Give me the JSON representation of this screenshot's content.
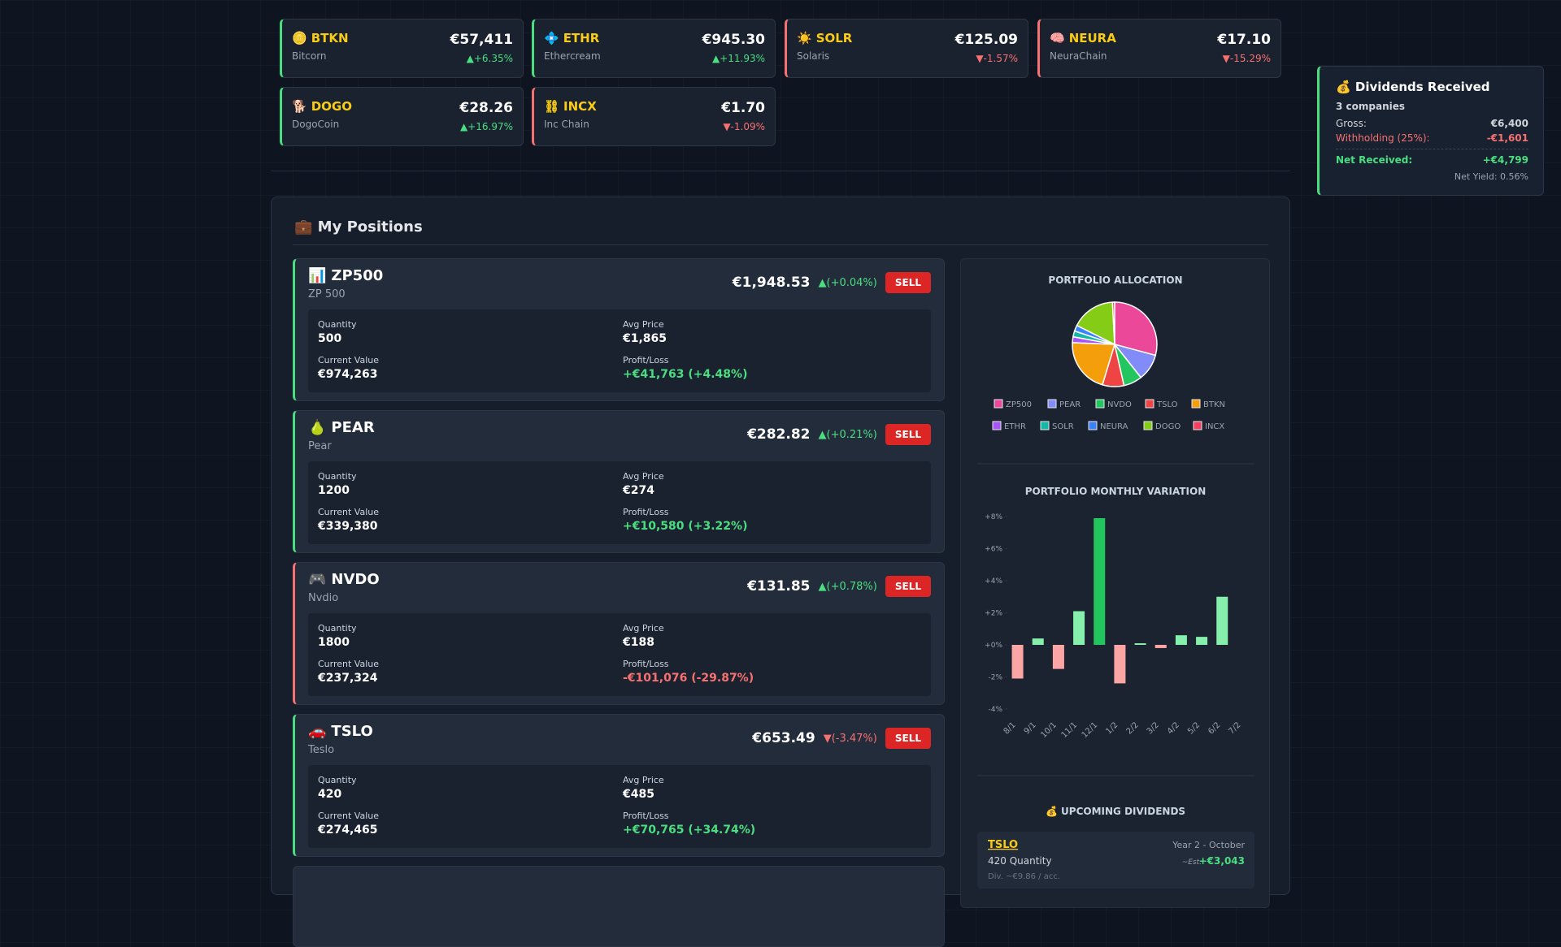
{
  "tickers": [
    {
      "icon": "🪙",
      "symbol": "BTKN",
      "name": "Bitcorn",
      "price": "€57,411",
      "change": "▲+6.35%",
      "direction": "up"
    },
    {
      "icon": "💠",
      "symbol": "ETHR",
      "name": "Ethercream",
      "price": "€945.30",
      "change": "▲+11.93%",
      "direction": "up"
    },
    {
      "icon": "☀️",
      "symbol": "SOLR",
      "name": "Solaris",
      "price": "€125.09",
      "change": "▼-1.57%",
      "direction": "down"
    },
    {
      "icon": "🧠",
      "symbol": "NEURA",
      "name": "NeuraChain",
      "price": "€17.10",
      "change": "▼-15.29%",
      "direction": "down"
    },
    {
      "icon": "🐕",
      "symbol": "DOGO",
      "name": "DogoCoin",
      "price": "€28.26",
      "change": "▲+16.97%",
      "direction": "up"
    },
    {
      "icon": "⛓",
      "symbol": "INCX",
      "name": "Inc Chain",
      "price": "€1.70",
      "change": "▼-1.09%",
      "direction": "down"
    }
  ],
  "dividends": {
    "title": "💰 Dividends Received",
    "companies": "3 companies",
    "rows": [
      {
        "label": "Gross:",
        "value": "€6,400",
        "tone": "neutral"
      },
      {
        "label": "Withholding (25%):",
        "value": "-€1,601",
        "tone": "down"
      },
      {
        "label": "Net Received:",
        "value": "+€4,799",
        "tone": "up"
      }
    ],
    "net_yield": "Net Yield: 0.56%"
  },
  "positions": {
    "title": "💼 My Positions",
    "labels": {
      "quantity": "Quantity",
      "avg_price": "Avg Price",
      "current_value": "Current Value",
      "profit_loss": "Profit/Loss",
      "sell": "SELL"
    },
    "items": [
      {
        "icon": "📊",
        "symbol": "ZP500",
        "name": "ZP 500",
        "price": "€1,948.53",
        "change": "▲(+0.04%)",
        "change_direction": "up",
        "quantity": "500",
        "avg_price": "€1,865",
        "current_value": "€974,263",
        "profit_loss": "+€41,763 (+4.48%)",
        "direction": "up"
      },
      {
        "icon": "🍐",
        "symbol": "PEAR",
        "name": "Pear",
        "price": "€282.82",
        "change": "▲(+0.21%)",
        "change_direction": "up",
        "quantity": "1200",
        "avg_price": "€274",
        "current_value": "€339,380",
        "profit_loss": "+€10,580 (+3.22%)",
        "direction": "up"
      },
      {
        "icon": "🎮",
        "symbol": "NVDO",
        "name": "Nvdio",
        "price": "€131.85",
        "change": "▲(+0.78%)",
        "change_direction": "up",
        "quantity": "1800",
        "avg_price": "€188",
        "current_value": "€237,324",
        "profit_loss": "-€101,076 (-29.87%)",
        "direction": "down"
      },
      {
        "icon": "🚗",
        "symbol": "TSLO",
        "name": "Teslo",
        "price": "€653.49",
        "change": "▼(-3.47%)",
        "change_direction": "down",
        "quantity": "420",
        "avg_price": "€485",
        "current_value": "€274,465",
        "profit_loss": "+€70,765 (+34.74%)",
        "direction": "up"
      }
    ]
  },
  "chart_data": [
    {
      "type": "pie",
      "title": "PORTFOLIO ALLOCATION",
      "categories": [
        "ZP500",
        "PEAR",
        "NVDO",
        "TSLO",
        "BTKN",
        "ETHR",
        "SOLR",
        "NEURA",
        "DOGO",
        "INCX"
      ],
      "values": [
        974263,
        339380,
        237324,
        274465,
        700000,
        75000,
        75000,
        75000,
        560000,
        28000
      ],
      "colors": [
        "#ec4899",
        "#818cf8",
        "#22c55e",
        "#ef4444",
        "#f59e0b",
        "#a855f7",
        "#14b8a6",
        "#3b82f6",
        "#84cc16",
        "#f43f5e"
      ]
    },
    {
      "type": "bar",
      "title": "PORTFOLIO MONTHLY VARIATION",
      "categories": [
        "8/1",
        "9/1",
        "10/1",
        "11/1",
        "12/1",
        "1/2",
        "2/2",
        "3/2",
        "4/2",
        "5/2",
        "6/2",
        "7/2"
      ],
      "values": [
        -2.1,
        0.4,
        -1.5,
        2.1,
        7.9,
        -2.4,
        0.1,
        -0.2,
        0.6,
        0.5,
        3.0,
        null
      ],
      "colors": [
        "#fca5a5",
        "#86efac",
        "#fca5a5",
        "#86efac",
        "#22c55e",
        "#fca5a5",
        "#86efac",
        "#fca5a5",
        "#86efac",
        "#86efac",
        "#86efac",
        null
      ],
      "ylim": [
        -4,
        8
      ],
      "yticks": [
        {
          "value": -4,
          "label": "-4%"
        },
        {
          "value": -2,
          "label": "-2%"
        },
        {
          "value": 0,
          "label": "+0%"
        },
        {
          "value": 2,
          "label": "+2%"
        },
        {
          "value": 4,
          "label": "+4%"
        },
        {
          "value": 6,
          "label": "+6%"
        },
        {
          "value": 8,
          "label": "+8%"
        }
      ]
    }
  ],
  "upcoming": {
    "title": "💰 UPCOMING DIVIDENDS",
    "items": [
      {
        "symbol": "TSLO",
        "period": "Year 2 - October",
        "quantity": "420 Quantity",
        "est_label": "~Est.",
        "est_value": "+€3,043",
        "detail": "Div. ~€9.86 / acc."
      }
    ]
  }
}
